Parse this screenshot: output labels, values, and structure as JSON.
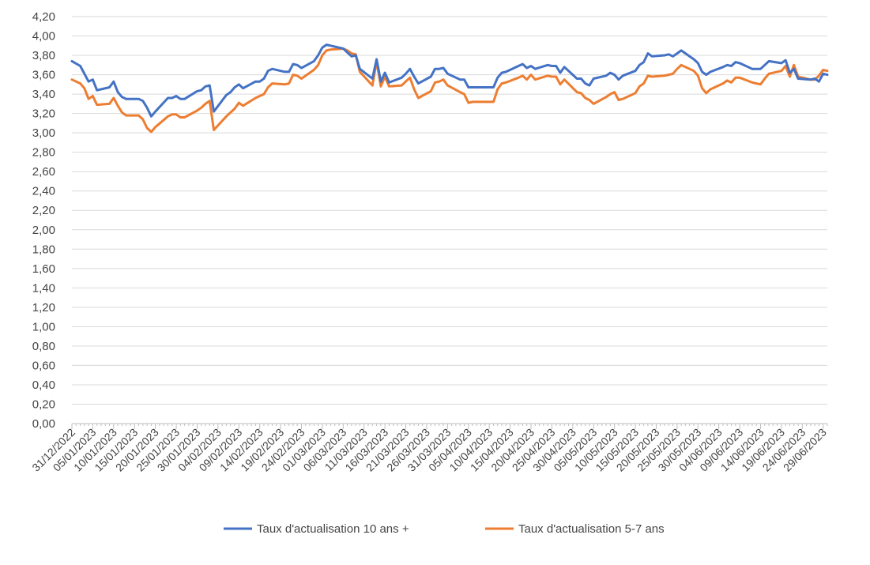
{
  "chart_data": {
    "type": "line",
    "title": "",
    "xlabel": "",
    "ylabel": "",
    "ylim": [
      0,
      4.2
    ],
    "y_ticks": [
      "0,00",
      "0,20",
      "0,40",
      "0,60",
      "0,80",
      "1,00",
      "1,20",
      "1,40",
      "1,60",
      "1,80",
      "2,00",
      "2,20",
      "2,40",
      "2,60",
      "2,80",
      "3,00",
      "3,20",
      "3,40",
      "3,60",
      "3,80",
      "4,00",
      "4,20"
    ],
    "x_ticks": [
      "31/12/2022",
      "05/01/2023",
      "10/01/2023",
      "15/01/2023",
      "20/01/2023",
      "25/01/2023",
      "30/01/2023",
      "04/02/2023",
      "09/02/2023",
      "14/02/2023",
      "19/02/2023",
      "24/02/2023",
      "01/03/2023",
      "06/03/2023",
      "11/03/2023",
      "16/03/2023",
      "21/03/2023",
      "26/03/2023",
      "31/03/2023",
      "05/04/2023",
      "10/04/2023",
      "15/04/2023",
      "20/04/2023",
      "25/04/2023",
      "30/04/2023",
      "05/05/2023",
      "10/05/2023",
      "15/05/2023",
      "20/05/2023",
      "25/05/2023",
      "30/05/2023",
      "04/06/2023",
      "09/06/2023",
      "14/06/2023",
      "19/06/2023",
      "24/06/2023",
      "29/06/2023"
    ],
    "x_range": [
      "2022-12-31",
      "2023-06-30"
    ],
    "grid": "horizontal",
    "legend_position": "bottom",
    "series": [
      {
        "name": "Taux d'actualisation 10 ans +",
        "color": "#4472C4",
        "points": [
          [
            "2022-12-31",
            3.74
          ],
          [
            "2023-01-02",
            3.69
          ],
          [
            "2023-01-04",
            3.53
          ],
          [
            "2023-01-05",
            3.55
          ],
          [
            "2023-01-06",
            3.44
          ],
          [
            "2023-01-09",
            3.47
          ],
          [
            "2023-01-10",
            3.53
          ],
          [
            "2023-01-11",
            3.42
          ],
          [
            "2023-01-12",
            3.37
          ],
          [
            "2023-01-13",
            3.35
          ],
          [
            "2023-01-16",
            3.35
          ],
          [
            "2023-01-17",
            3.33
          ],
          [
            "2023-01-18",
            3.26
          ],
          [
            "2023-01-19",
            3.17
          ],
          [
            "2023-01-20",
            3.22
          ],
          [
            "2023-01-23",
            3.36
          ],
          [
            "2023-01-24",
            3.36
          ],
          [
            "2023-01-25",
            3.38
          ],
          [
            "2023-01-26",
            3.35
          ],
          [
            "2023-01-27",
            3.35
          ],
          [
            "2023-01-30",
            3.43
          ],
          [
            "2023-01-31",
            3.44
          ],
          [
            "2023-02-01",
            3.48
          ],
          [
            "2023-02-02",
            3.49
          ],
          [
            "2023-02-03",
            3.22
          ],
          [
            "2023-02-06",
            3.39
          ],
          [
            "2023-02-07",
            3.42
          ],
          [
            "2023-02-08",
            3.47
          ],
          [
            "2023-02-09",
            3.5
          ],
          [
            "2023-02-10",
            3.46
          ],
          [
            "2023-02-13",
            3.53
          ],
          [
            "2023-02-14",
            3.53
          ],
          [
            "2023-02-15",
            3.56
          ],
          [
            "2023-02-16",
            3.64
          ],
          [
            "2023-02-17",
            3.66
          ],
          [
            "2023-02-20",
            3.63
          ],
          [
            "2023-02-21",
            3.63
          ],
          [
            "2023-02-22",
            3.71
          ],
          [
            "2023-02-23",
            3.7
          ],
          [
            "2023-02-24",
            3.67
          ],
          [
            "2023-02-27",
            3.74
          ],
          [
            "2023-02-28",
            3.8
          ],
          [
            "2023-03-01",
            3.88
          ],
          [
            "2023-03-02",
            3.91
          ],
          [
            "2023-03-03",
            3.9
          ],
          [
            "2023-03-06",
            3.87
          ],
          [
            "2023-03-07",
            3.83
          ],
          [
            "2023-03-08",
            3.79
          ],
          [
            "2023-03-09",
            3.8
          ],
          [
            "2023-03-10",
            3.66
          ],
          [
            "2023-03-13",
            3.56
          ],
          [
            "2023-03-14",
            3.76
          ],
          [
            "2023-03-15",
            3.53
          ],
          [
            "2023-03-16",
            3.62
          ],
          [
            "2023-03-17",
            3.52
          ],
          [
            "2023-03-20",
            3.57
          ],
          [
            "2023-03-21",
            3.61
          ],
          [
            "2023-03-22",
            3.66
          ],
          [
            "2023-03-23",
            3.58
          ],
          [
            "2023-03-24",
            3.51
          ],
          [
            "2023-03-27",
            3.58
          ],
          [
            "2023-03-28",
            3.66
          ],
          [
            "2023-03-29",
            3.66
          ],
          [
            "2023-03-30",
            3.67
          ],
          [
            "2023-03-31",
            3.61
          ],
          [
            "2023-04-03",
            3.55
          ],
          [
            "2023-04-04",
            3.55
          ],
          [
            "2023-04-05",
            3.47
          ],
          [
            "2023-04-06",
            3.47
          ],
          [
            "2023-04-11",
            3.47
          ],
          [
            "2023-04-12",
            3.57
          ],
          [
            "2023-04-13",
            3.62
          ],
          [
            "2023-04-14",
            3.63
          ],
          [
            "2023-04-17",
            3.69
          ],
          [
            "2023-04-18",
            3.71
          ],
          [
            "2023-04-19",
            3.67
          ],
          [
            "2023-04-20",
            3.69
          ],
          [
            "2023-04-21",
            3.66
          ],
          [
            "2023-04-24",
            3.7
          ],
          [
            "2023-04-25",
            3.69
          ],
          [
            "2023-04-26",
            3.69
          ],
          [
            "2023-04-27",
            3.62
          ],
          [
            "2023-04-28",
            3.68
          ],
          [
            "2023-05-01",
            3.56
          ],
          [
            "2023-05-02",
            3.56
          ],
          [
            "2023-05-03",
            3.51
          ],
          [
            "2023-05-04",
            3.49
          ],
          [
            "2023-05-05",
            3.56
          ],
          [
            "2023-05-08",
            3.59
          ],
          [
            "2023-05-09",
            3.62
          ],
          [
            "2023-05-10",
            3.6
          ],
          [
            "2023-05-11",
            3.55
          ],
          [
            "2023-05-12",
            3.59
          ],
          [
            "2023-05-15",
            3.64
          ],
          [
            "2023-05-16",
            3.7
          ],
          [
            "2023-05-17",
            3.73
          ],
          [
            "2023-05-18",
            3.82
          ],
          [
            "2023-05-19",
            3.79
          ],
          [
            "2023-05-22",
            3.8
          ],
          [
            "2023-05-23",
            3.81
          ],
          [
            "2023-05-24",
            3.79
          ],
          [
            "2023-05-25",
            3.82
          ],
          [
            "2023-05-26",
            3.85
          ],
          [
            "2023-05-29",
            3.76
          ],
          [
            "2023-05-30",
            3.72
          ],
          [
            "2023-05-31",
            3.63
          ],
          [
            "2023-06-01",
            3.6
          ],
          [
            "2023-06-02",
            3.63
          ],
          [
            "2023-06-05",
            3.68
          ],
          [
            "2023-06-06",
            3.7
          ],
          [
            "2023-06-07",
            3.69
          ],
          [
            "2023-06-08",
            3.73
          ],
          [
            "2023-06-09",
            3.72
          ],
          [
            "2023-06-12",
            3.66
          ],
          [
            "2023-06-13",
            3.66
          ],
          [
            "2023-06-14",
            3.66
          ],
          [
            "2023-06-15",
            3.7
          ],
          [
            "2023-06-16",
            3.74
          ],
          [
            "2023-06-19",
            3.72
          ],
          [
            "2023-06-20",
            3.75
          ],
          [
            "2023-06-21",
            3.62
          ],
          [
            "2023-06-22",
            3.66
          ],
          [
            "2023-06-23",
            3.56
          ],
          [
            "2023-06-26",
            3.55
          ],
          [
            "2023-06-27",
            3.56
          ],
          [
            "2023-06-28",
            3.53
          ],
          [
            "2023-06-29",
            3.61
          ],
          [
            "2023-06-30",
            3.6
          ]
        ]
      },
      {
        "name": "Taux d'actualisation 5-7 ans",
        "color": "#ED7D31",
        "points": [
          [
            "2022-12-31",
            3.55
          ],
          [
            "2023-01-02",
            3.51
          ],
          [
            "2023-01-03",
            3.46
          ],
          [
            "2023-01-04",
            3.35
          ],
          [
            "2023-01-05",
            3.38
          ],
          [
            "2023-01-06",
            3.29
          ],
          [
            "2023-01-09",
            3.3
          ],
          [
            "2023-01-10",
            3.36
          ],
          [
            "2023-01-11",
            3.28
          ],
          [
            "2023-01-12",
            3.21
          ],
          [
            "2023-01-13",
            3.18
          ],
          [
            "2023-01-16",
            3.18
          ],
          [
            "2023-01-17",
            3.14
          ],
          [
            "2023-01-18",
            3.05
          ],
          [
            "2023-01-19",
            3.01
          ],
          [
            "2023-01-20",
            3.06
          ],
          [
            "2023-01-23",
            3.17
          ],
          [
            "2023-01-24",
            3.19
          ],
          [
            "2023-01-25",
            3.19
          ],
          [
            "2023-01-26",
            3.16
          ],
          [
            "2023-01-27",
            3.16
          ],
          [
            "2023-01-30",
            3.23
          ],
          [
            "2023-01-31",
            3.26
          ],
          [
            "2023-02-01",
            3.3
          ],
          [
            "2023-02-02",
            3.33
          ],
          [
            "2023-02-03",
            3.03
          ],
          [
            "2023-02-06",
            3.17
          ],
          [
            "2023-02-07",
            3.21
          ],
          [
            "2023-02-08",
            3.25
          ],
          [
            "2023-02-09",
            3.31
          ],
          [
            "2023-02-10",
            3.28
          ],
          [
            "2023-02-13",
            3.36
          ],
          [
            "2023-02-14",
            3.38
          ],
          [
            "2023-02-15",
            3.4
          ],
          [
            "2023-02-16",
            3.47
          ],
          [
            "2023-02-17",
            3.51
          ],
          [
            "2023-02-20",
            3.5
          ],
          [
            "2023-02-21",
            3.51
          ],
          [
            "2023-02-22",
            3.6
          ],
          [
            "2023-02-23",
            3.59
          ],
          [
            "2023-02-24",
            3.56
          ],
          [
            "2023-02-27",
            3.65
          ],
          [
            "2023-02-28",
            3.7
          ],
          [
            "2023-03-01",
            3.8
          ],
          [
            "2023-03-02",
            3.85
          ],
          [
            "2023-03-03",
            3.86
          ],
          [
            "2023-03-06",
            3.87
          ],
          [
            "2023-03-07",
            3.85
          ],
          [
            "2023-03-08",
            3.82
          ],
          [
            "2023-03-09",
            3.81
          ],
          [
            "2023-03-10",
            3.63
          ],
          [
            "2023-03-13",
            3.49
          ],
          [
            "2023-03-14",
            3.74
          ],
          [
            "2023-03-15",
            3.48
          ],
          [
            "2023-03-16",
            3.58
          ],
          [
            "2023-03-17",
            3.48
          ],
          [
            "2023-03-20",
            3.49
          ],
          [
            "2023-03-21",
            3.53
          ],
          [
            "2023-03-22",
            3.57
          ],
          [
            "2023-03-23",
            3.45
          ],
          [
            "2023-03-24",
            3.36
          ],
          [
            "2023-03-27",
            3.43
          ],
          [
            "2023-03-28",
            3.52
          ],
          [
            "2023-03-29",
            3.53
          ],
          [
            "2023-03-30",
            3.55
          ],
          [
            "2023-03-31",
            3.49
          ],
          [
            "2023-04-03",
            3.42
          ],
          [
            "2023-04-04",
            3.4
          ],
          [
            "2023-04-05",
            3.31
          ],
          [
            "2023-04-06",
            3.32
          ],
          [
            "2023-04-11",
            3.32
          ],
          [
            "2023-04-12",
            3.45
          ],
          [
            "2023-04-13",
            3.51
          ],
          [
            "2023-04-14",
            3.52
          ],
          [
            "2023-04-17",
            3.57
          ],
          [
            "2023-04-18",
            3.59
          ],
          [
            "2023-04-19",
            3.55
          ],
          [
            "2023-04-20",
            3.6
          ],
          [
            "2023-04-21",
            3.55
          ],
          [
            "2023-04-24",
            3.59
          ],
          [
            "2023-04-25",
            3.58
          ],
          [
            "2023-04-26",
            3.58
          ],
          [
            "2023-04-27",
            3.5
          ],
          [
            "2023-04-28",
            3.55
          ],
          [
            "2023-05-01",
            3.42
          ],
          [
            "2023-05-02",
            3.41
          ],
          [
            "2023-05-03",
            3.36
          ],
          [
            "2023-05-04",
            3.34
          ],
          [
            "2023-05-05",
            3.3
          ],
          [
            "2023-05-08",
            3.37
          ],
          [
            "2023-05-09",
            3.4
          ],
          [
            "2023-05-10",
            3.42
          ],
          [
            "2023-05-11",
            3.34
          ],
          [
            "2023-05-12",
            3.35
          ],
          [
            "2023-05-15",
            3.41
          ],
          [
            "2023-05-16",
            3.48
          ],
          [
            "2023-05-17",
            3.51
          ],
          [
            "2023-05-18",
            3.59
          ],
          [
            "2023-05-19",
            3.58
          ],
          [
            "2023-05-22",
            3.59
          ],
          [
            "2023-05-23",
            3.6
          ],
          [
            "2023-05-24",
            3.61
          ],
          [
            "2023-05-25",
            3.66
          ],
          [
            "2023-05-26",
            3.7
          ],
          [
            "2023-05-29",
            3.64
          ],
          [
            "2023-05-30",
            3.59
          ],
          [
            "2023-05-31",
            3.46
          ],
          [
            "2023-06-01",
            3.41
          ],
          [
            "2023-06-02",
            3.45
          ],
          [
            "2023-06-05",
            3.51
          ],
          [
            "2023-06-06",
            3.54
          ],
          [
            "2023-06-07",
            3.52
          ],
          [
            "2023-06-08",
            3.57
          ],
          [
            "2023-06-09",
            3.57
          ],
          [
            "2023-06-12",
            3.52
          ],
          [
            "2023-06-13",
            3.51
          ],
          [
            "2023-06-14",
            3.5
          ],
          [
            "2023-06-15",
            3.56
          ],
          [
            "2023-06-16",
            3.61
          ],
          [
            "2023-06-19",
            3.64
          ],
          [
            "2023-06-20",
            3.69
          ],
          [
            "2023-06-21",
            3.58
          ],
          [
            "2023-06-22",
            3.7
          ],
          [
            "2023-06-23",
            3.58
          ],
          [
            "2023-06-26",
            3.55
          ],
          [
            "2023-06-27",
            3.55
          ],
          [
            "2023-06-28",
            3.59
          ],
          [
            "2023-06-29",
            3.65
          ],
          [
            "2023-06-30",
            3.64
          ]
        ]
      }
    ]
  }
}
